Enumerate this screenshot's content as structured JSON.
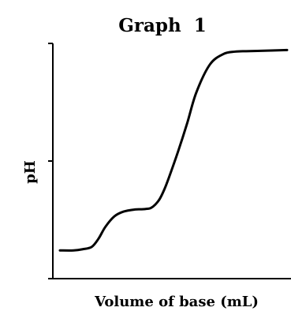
{
  "chart_data": {
    "type": "line",
    "title": "Graph  1",
    "xlabel": "Volume of base (mL)",
    "ylabel": "pH",
    "grid": false,
    "y_ticks": 3,
    "series": [
      {
        "x": [
          0,
          6,
          10,
          14,
          17,
          20,
          24,
          28,
          33,
          36,
          38.5,
          40,
          42,
          44,
          46,
          48,
          52,
          56,
          60,
          66,
          72,
          77,
          82,
          87,
          93,
          100
        ],
        "y": [
          0.12,
          0.12,
          0.125,
          0.135,
          0.17,
          0.22,
          0.265,
          0.285,
          0.294,
          0.295,
          0.297,
          0.3,
          0.315,
          0.34,
          0.38,
          0.43,
          0.54,
          0.66,
          0.79,
          0.91,
          0.955,
          0.965,
          0.967,
          0.968,
          0.97,
          0.972
        ]
      }
    ]
  }
}
